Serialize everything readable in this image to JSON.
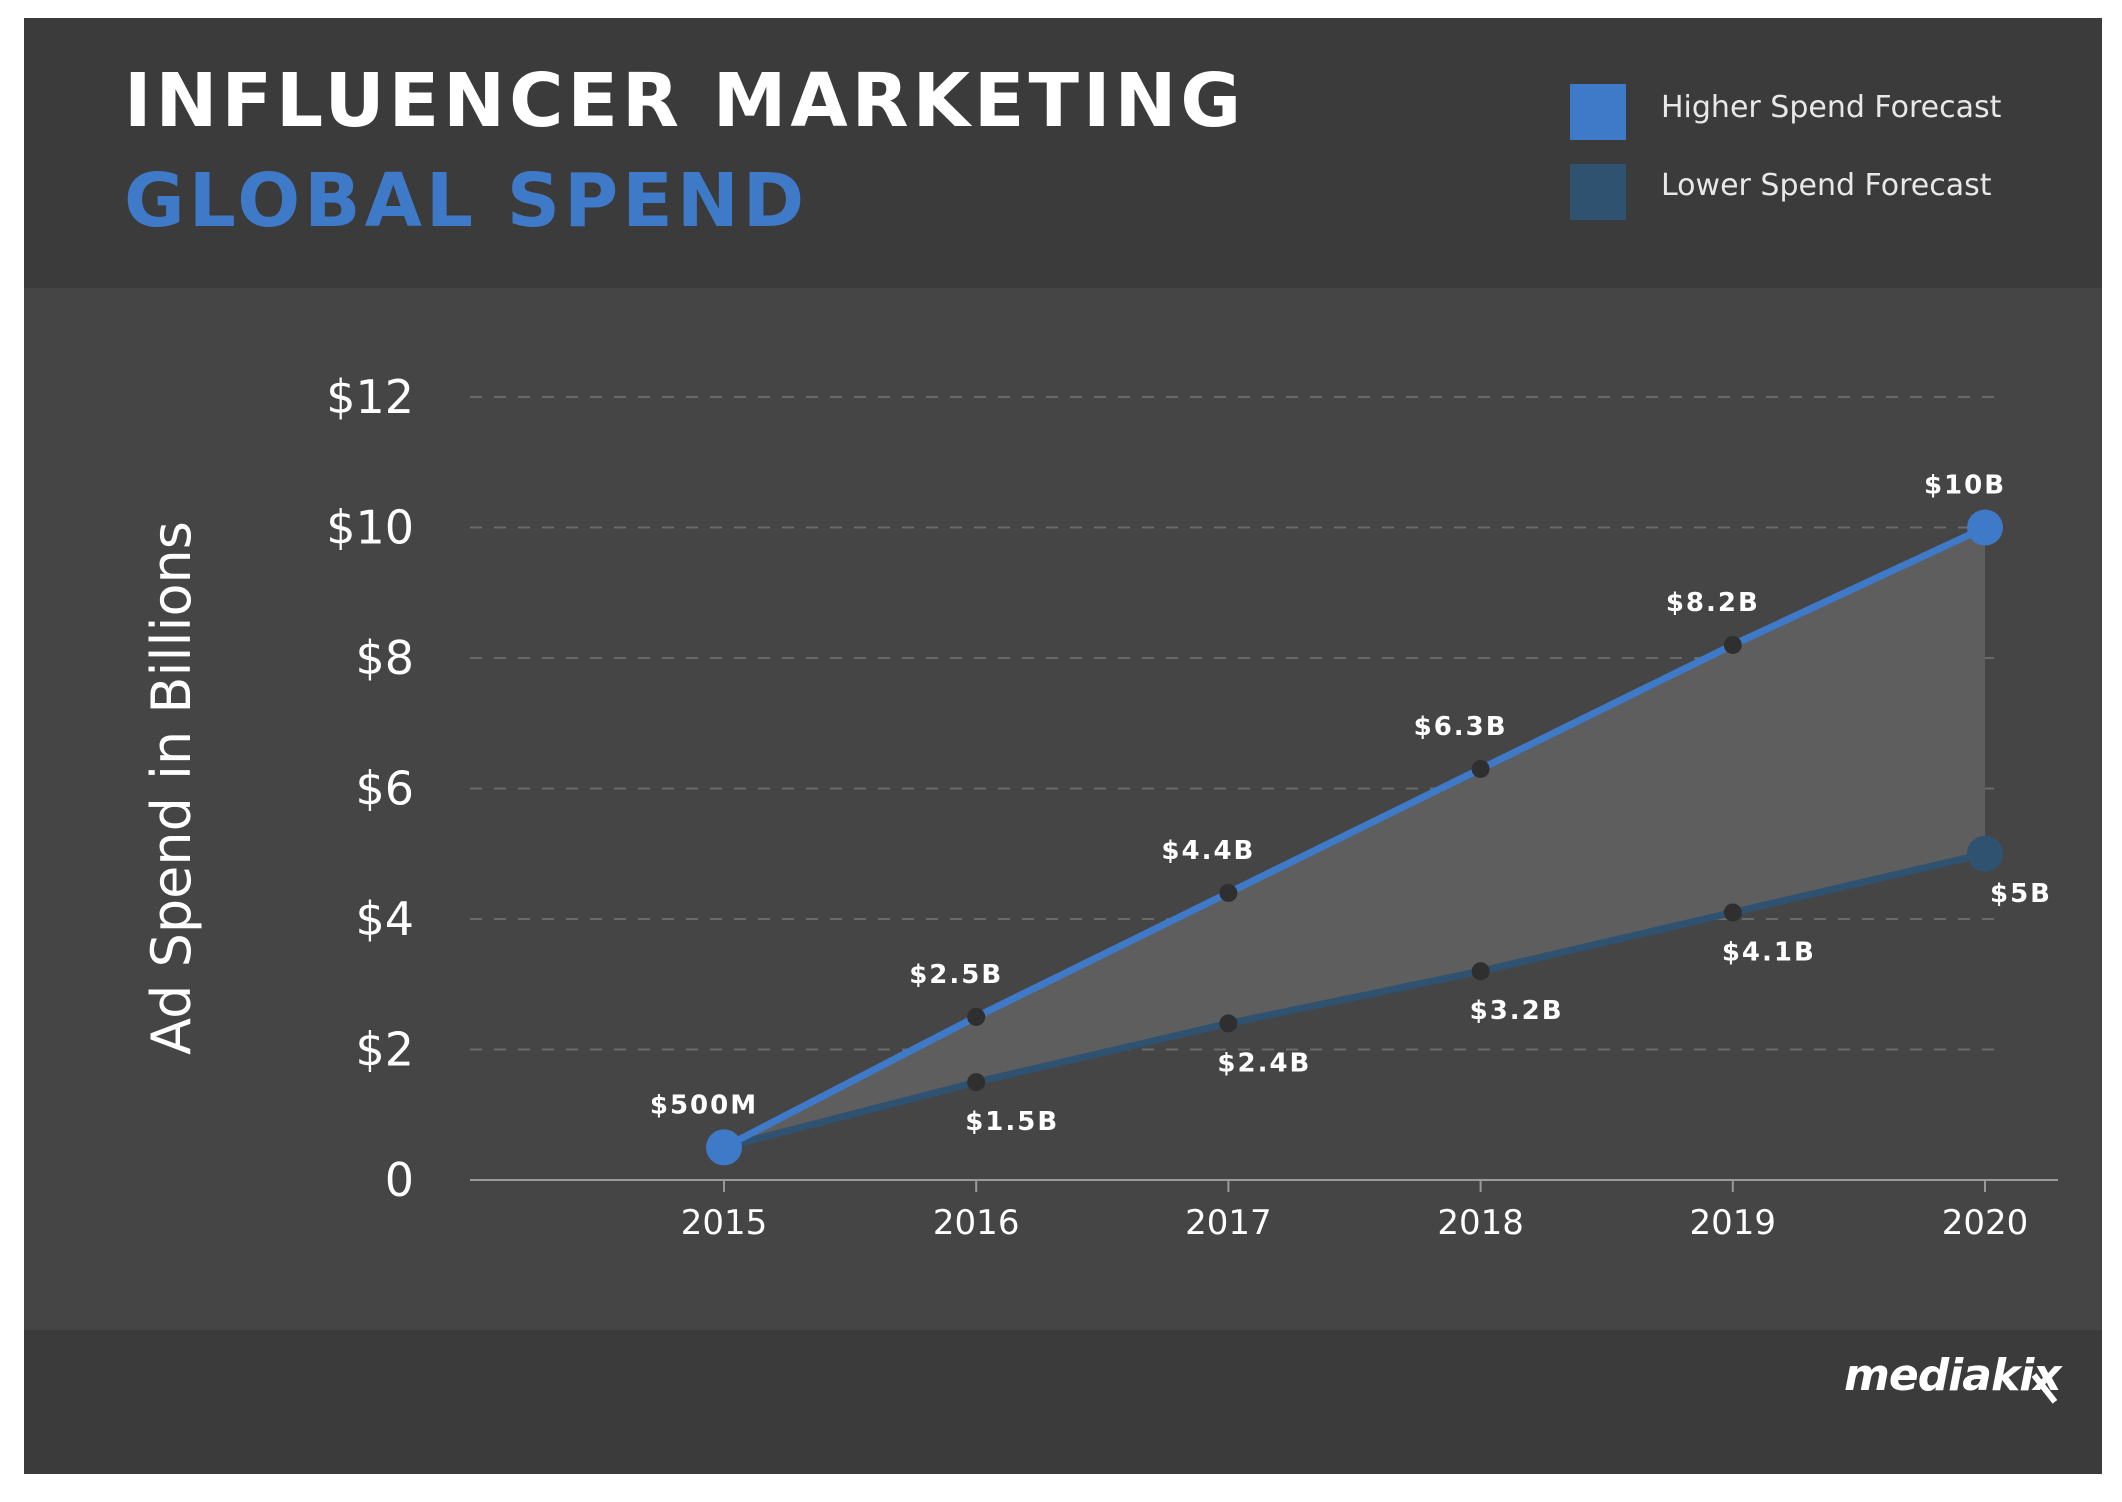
{
  "header": {
    "title_line1": "INFLUENCER MARKETING",
    "title_line2": "GLOBAL SPEND"
  },
  "legend": [
    {
      "label": "Higher Spend Forecast",
      "color": "#3f7ac9"
    },
    {
      "label": "Lower Spend Forecast",
      "color": "#2f5271"
    }
  ],
  "footer": {
    "logo_text": "mediakix"
  },
  "colors": {
    "background": "#454545",
    "header_bg": "#3b3b3b",
    "band_fill": "#5e5e5e",
    "higher_line": "#3f7ac9",
    "lower_line": "#2f5271",
    "marker_dot": "#2f2f2f"
  },
  "chart_data": {
    "type": "line",
    "x": [
      "2015",
      "2016",
      "2017",
      "2018",
      "2019",
      "2020"
    ],
    "series": [
      {
        "name": "Higher Spend Forecast",
        "values": [
          0.5,
          2.5,
          4.4,
          6.3,
          8.2,
          10
        ],
        "labels": [
          "$500M",
          "$2.5B",
          "$4.4B",
          "$6.3B",
          "$8.2B",
          "$10B"
        ]
      },
      {
        "name": "Lower Spend Forecast",
        "values": [
          0.5,
          1.5,
          2.4,
          3.2,
          4.1,
          5
        ],
        "labels": [
          "",
          "$1.5B",
          "$2.4B",
          "$3.2B",
          "$4.1B",
          "$5B"
        ]
      }
    ],
    "ylabel": "Ad Spend in Billions",
    "xlabel": "",
    "ylim": [
      0,
      12
    ],
    "yticks": [
      0,
      2,
      4,
      6,
      8,
      10,
      12
    ],
    "ytick_labels": [
      "0",
      "$2",
      "$4",
      "$6",
      "$8",
      "$10",
      "$12"
    ],
    "grid": true,
    "legend_position": "top-right",
    "shaded_between_series": true
  }
}
